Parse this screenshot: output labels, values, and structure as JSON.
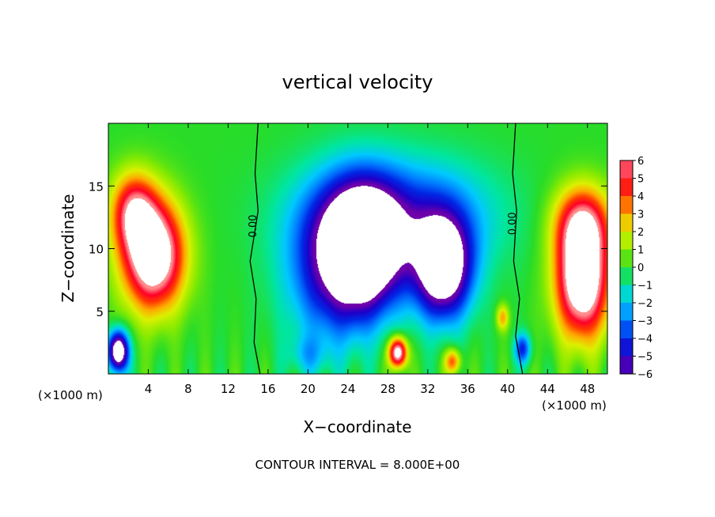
{
  "chart_data": {
    "type": "heatmap",
    "title": "vertical velocity",
    "xlabel": "X−coordinate",
    "ylabel": "Z−coordinate",
    "x_unit_left": "(×1000 m)",
    "x_unit_right": "(×1000 m)",
    "footer": "CONTOUR INTERVAL = 8.000E+00",
    "xlim": [
      0,
      50
    ],
    "ylim": [
      0,
      20
    ],
    "x_ticks": [
      4,
      8,
      12,
      16,
      20,
      24,
      28,
      32,
      36,
      40,
      44,
      48
    ],
    "x_tick_labels": [
      "4",
      "8",
      "12",
      "16",
      "20",
      "24",
      "28",
      "32",
      "36",
      "40",
      "44",
      "48"
    ],
    "y_ticks": [
      5,
      10,
      15
    ],
    "y_tick_labels": [
      "5",
      "10",
      "15"
    ],
    "colorbar": {
      "min": -6,
      "max": 6,
      "ticks": [
        6,
        5,
        4,
        3,
        2,
        1,
        0,
        -1,
        -2,
        -3,
        -4,
        -5,
        -6
      ],
      "tick_labels": [
        "6",
        "5",
        "4",
        "3",
        "2",
        "1",
        "0",
        "−1",
        "−2",
        "−3",
        "−4",
        "−5",
        "−6"
      ]
    },
    "contour_labels": [
      {
        "text": "0.00",
        "x": 14.8,
        "z": 11.8
      },
      {
        "text": "0.00",
        "x": 40.8,
        "z": 12.0
      }
    ],
    "features": [
      {
        "x": 4.5,
        "z": 9.5,
        "sx": 3.0,
        "sz": 4.2,
        "amp": 9
      },
      {
        "x": 2.5,
        "z": 13.0,
        "sx": 2.2,
        "sz": 3.0,
        "amp": 5
      },
      {
        "x": 1.0,
        "z": 1.8,
        "sx": 1.0,
        "sz": 1.6,
        "amp": -9
      },
      {
        "x": 25.5,
        "z": 10.0,
        "sx": 3.8,
        "sz": 4.8,
        "amp": -10
      },
      {
        "x": 33.5,
        "z": 8.5,
        "sx": 2.8,
        "sz": 4.0,
        "amp": -9
      },
      {
        "x": 22.0,
        "z": 8.0,
        "sx": 4.5,
        "sz": 6.0,
        "amp": -3.5
      },
      {
        "x": 29.0,
        "z": 12.5,
        "sx": 9.0,
        "sz": 4.5,
        "amp": -4
      },
      {
        "x": 29.0,
        "z": 1.7,
        "sx": 0.9,
        "sz": 1.2,
        "amp": 8
      },
      {
        "x": 34.5,
        "z": 1.0,
        "sx": 0.8,
        "sz": 1.0,
        "amp": 4
      },
      {
        "x": 39.5,
        "z": 4.5,
        "sx": 0.6,
        "sz": 1.0,
        "amp": 3
      },
      {
        "x": 47.5,
        "z": 7.5,
        "sx": 2.6,
        "sz": 4.5,
        "amp": 9
      },
      {
        "x": 47.5,
        "z": 12.0,
        "sx": 2.8,
        "sz": 3.0,
        "amp": 5
      },
      {
        "x": 41.5,
        "z": 2.0,
        "sx": 0.8,
        "sz": 1.2,
        "amp": -4
      },
      {
        "x": 20.0,
        "z": 1.5,
        "sx": 2.0,
        "sz": 1.5,
        "amp": -1.5
      }
    ]
  }
}
